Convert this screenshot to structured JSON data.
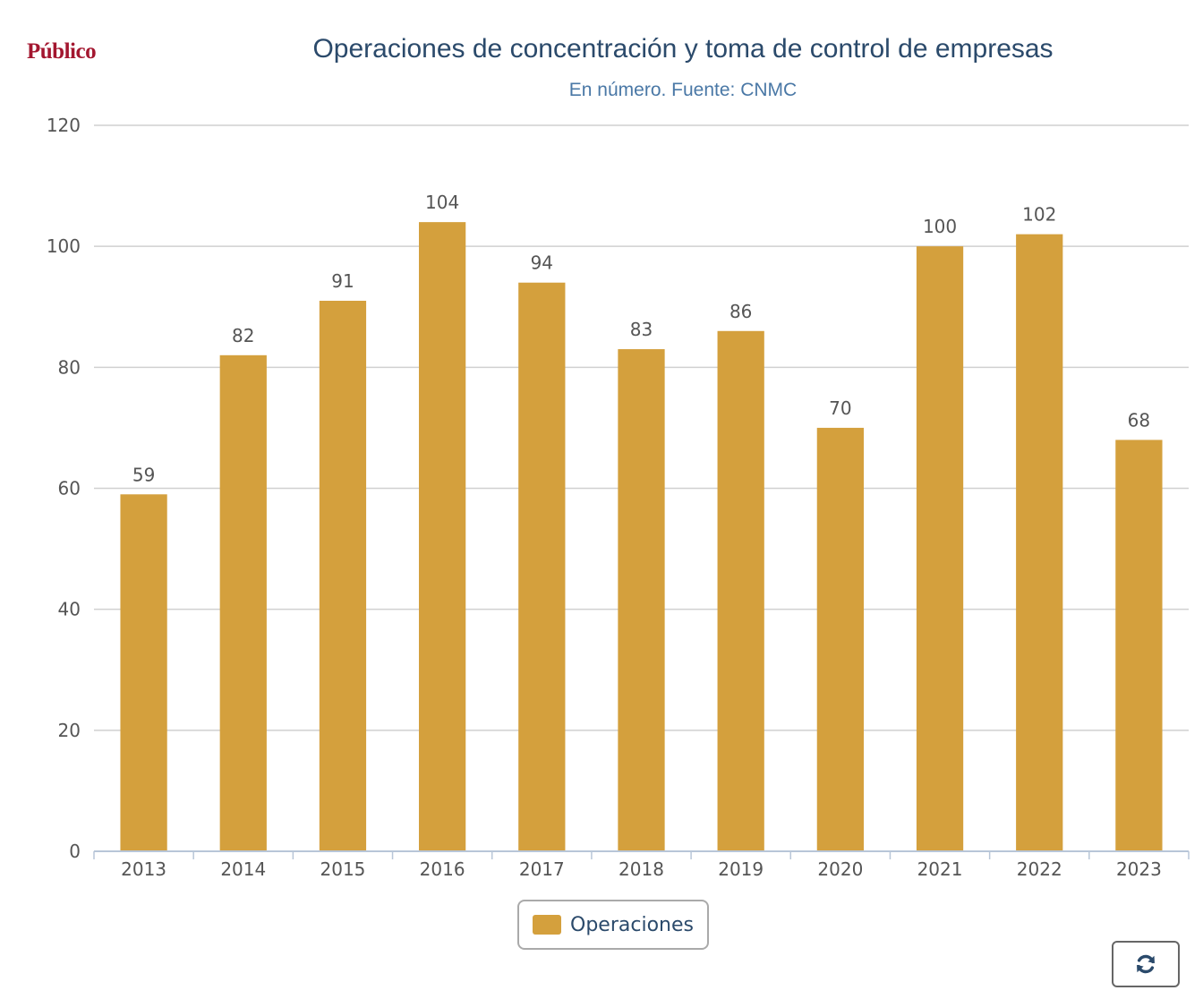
{
  "brand": {
    "logo_text": "Público"
  },
  "colors": {
    "bar": "#d4a03d",
    "grid": "#d0d0d0",
    "axis": "#b8c6d8",
    "title": "#2b4a6b",
    "subtitle": "#4a78a6",
    "logo": "#a3162f"
  },
  "controls": {
    "refresh_icon": "refresh-icon"
  },
  "chart_data": {
    "type": "bar",
    "title": "Operaciones de concentración y toma de control de empresas",
    "subtitle": "En número. Fuente: CNMC",
    "categories": [
      "2013",
      "2014",
      "2015",
      "2016",
      "2017",
      "2018",
      "2019",
      "2020",
      "2021",
      "2022",
      "2023"
    ],
    "series": [
      {
        "name": "Operaciones",
        "values": [
          59,
          82,
          91,
          104,
          94,
          83,
          86,
          70,
          100,
          102,
          68
        ]
      }
    ],
    "ylim": [
      0,
      120
    ],
    "yticks": [
      0,
      20,
      40,
      60,
      80,
      100,
      120
    ],
    "grid": true,
    "data_labels": true,
    "legend_position": "bottom-center"
  }
}
